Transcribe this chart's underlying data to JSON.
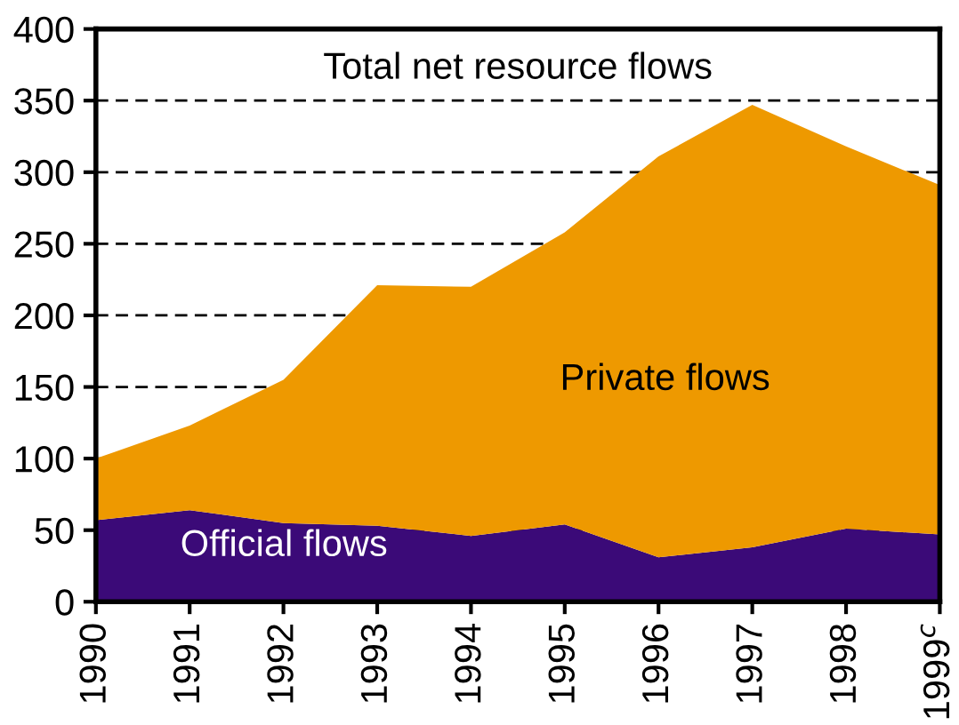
{
  "chart_data": {
    "type": "area",
    "stacked": true,
    "categories": [
      "1990",
      "1991",
      "1992",
      "1993",
      "1994",
      "1995",
      "1996",
      "1997",
      "1998",
      "1999$^{c}$"
    ],
    "series": [
      {
        "name": "Official flows",
        "color": "#3b0a78",
        "values": [
          57,
          64,
          55,
          53,
          46,
          54,
          31,
          38,
          51,
          47
        ]
      },
      {
        "name": "Private flows",
        "color": "#ee9900",
        "values": [
          43,
          59,
          100,
          168,
          174,
          204,
          280,
          309,
          267,
          244
        ]
      }
    ],
    "annotations": [
      "Total net resource flows"
    ],
    "ylim": [
      0,
      400
    ],
    "yticks": [
      0,
      50,
      100,
      150,
      200,
      250,
      300,
      350,
      400
    ],
    "grid": "y",
    "line_style": "dashed"
  }
}
